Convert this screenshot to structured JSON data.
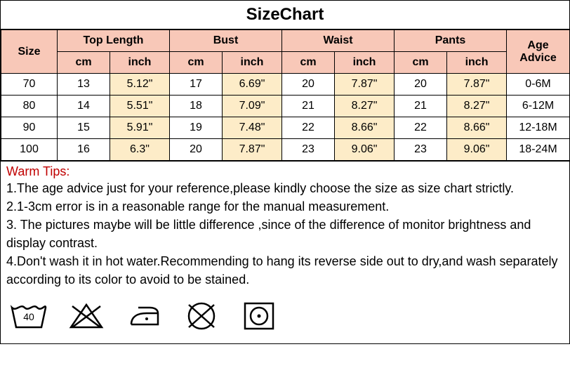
{
  "title": "SizeChart",
  "header": {
    "size": "Size",
    "age": "Age Advice",
    "groups": [
      "Top Length",
      "Bust",
      "Waist",
      "Pants"
    ],
    "sub_cm": "cm",
    "sub_inch": "inch"
  },
  "colors": {
    "header_bg": "#f8c8b8",
    "inch_bg": "#fdecc8",
    "tips_title": "#c00000",
    "border": "#000000"
  },
  "rows": [
    {
      "size": "70",
      "top_cm": "13",
      "top_in": "5.12\"",
      "bust_cm": "17",
      "bust_in": "6.69\"",
      "waist_cm": "20",
      "waist_in": "7.87\"",
      "pants_cm": "20",
      "pants_in": "7.87\"",
      "age": "0-6M"
    },
    {
      "size": "80",
      "top_cm": "14",
      "top_in": "5.51\"",
      "bust_cm": "18",
      "bust_in": "7.09\"",
      "waist_cm": "21",
      "waist_in": "8.27\"",
      "pants_cm": "21",
      "pants_in": "8.27\"",
      "age": "6-12M"
    },
    {
      "size": "90",
      "top_cm": "15",
      "top_in": "5.91\"",
      "bust_cm": "19",
      "bust_in": "7.48\"",
      "waist_cm": "22",
      "waist_in": "8.66\"",
      "pants_cm": "22",
      "pants_in": "8.66\"",
      "age": "12-18M"
    },
    {
      "size": "100",
      "top_cm": "16",
      "top_in": "6.3\"",
      "bust_cm": "20",
      "bust_in": "7.87\"",
      "waist_cm": "23",
      "waist_in": "9.06\"",
      "pants_cm": "23",
      "pants_in": "9.06\"",
      "age": "18-24M"
    }
  ],
  "tips": {
    "title": "Warm Tips:",
    "lines": [
      "1.The age advice just for your reference,please kindly choose the size as size chart strictly.",
      "2.1-3cm error is in a reasonable range for the manual measurement.",
      "3. The pictures maybe will be little difference ,since of the difference of monitor brightness and display contrast.",
      "4.Don't wash it in hot water.Recommending to hang its reverse side out to dry,and wash separately according to its color to avoid to be stained."
    ]
  },
  "care_icons": [
    "wash-40",
    "no-bleach",
    "iron-low",
    "no-dryclean",
    "tumble-dry-low"
  ]
}
